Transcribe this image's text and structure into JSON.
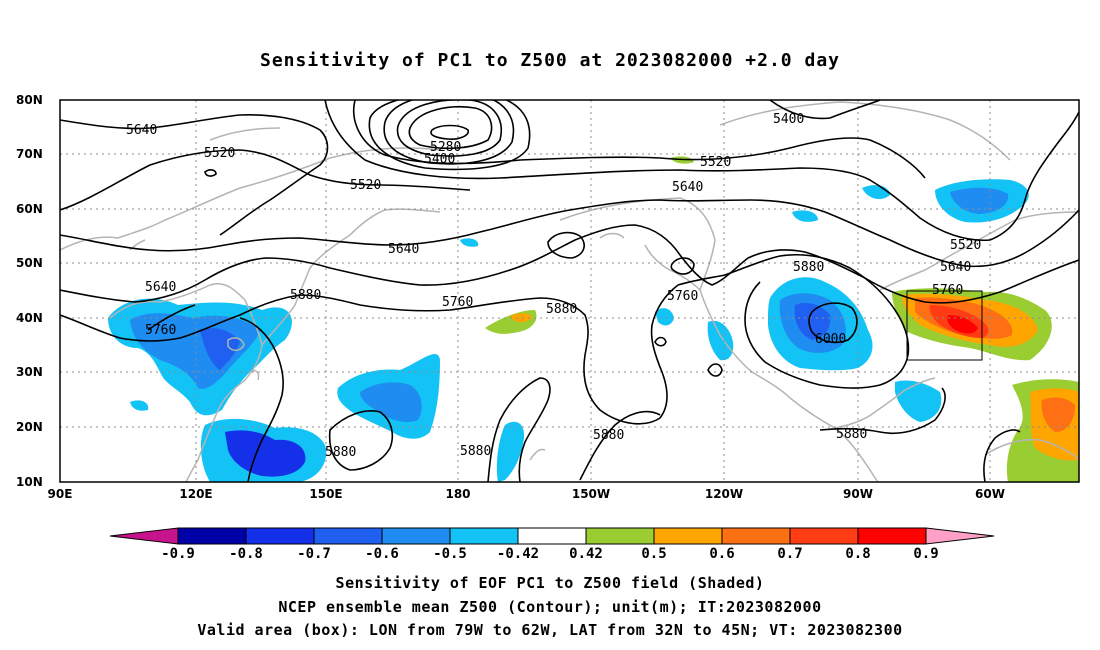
{
  "title": "Sensitivity of PC1 to Z500 at 2023082000 +2.0 day",
  "lat_labels": [
    "80N",
    "70N",
    "60N",
    "50N",
    "40N",
    "30N",
    "20N",
    "10N"
  ],
  "lon_labels": [
    "90E",
    "120E",
    "150E",
    "180",
    "150W",
    "120W",
    "90W",
    "60W"
  ],
  "contour_labels": [
    "5640",
    "5520",
    "5280",
    "5400",
    "5520",
    "5640",
    "5400",
    "5520",
    "5640",
    "5520",
    "5640",
    "5760",
    "5640",
    "5760",
    "5880",
    "5760",
    "5880",
    "5760",
    "5880",
    "6000",
    "5880",
    "5880",
    "5880",
    "5880"
  ],
  "colorbar": {
    "labels": [
      "-0.9",
      "-0.8",
      "-0.7",
      "-0.6",
      "-0.5",
      "-0.42",
      "0.42",
      "0.5",
      "0.6",
      "0.7",
      "0.8",
      "0.9"
    ],
    "colors": [
      "#0000a8",
      "#1430e8",
      "#2060f0",
      "#1e8cf0",
      "#14c3f5",
      "#ffffff",
      "#9acd32",
      "#ffa500",
      "#ff7014",
      "#ff3c14",
      "#ff0000"
    ],
    "low_end_color": "#c8148c",
    "high_end_color": "#ffa0c8"
  },
  "captions": {
    "line1": "Sensitivity of EOF PC1 to Z500 field (Shaded)",
    "line2": "NCEP ensemble mean Z500 (Contour); unit(m); IT:2023082000",
    "line3": "Valid area (box): LON from 79W to 62W, LAT from 32N to 45N; VT: 2023082300"
  }
}
